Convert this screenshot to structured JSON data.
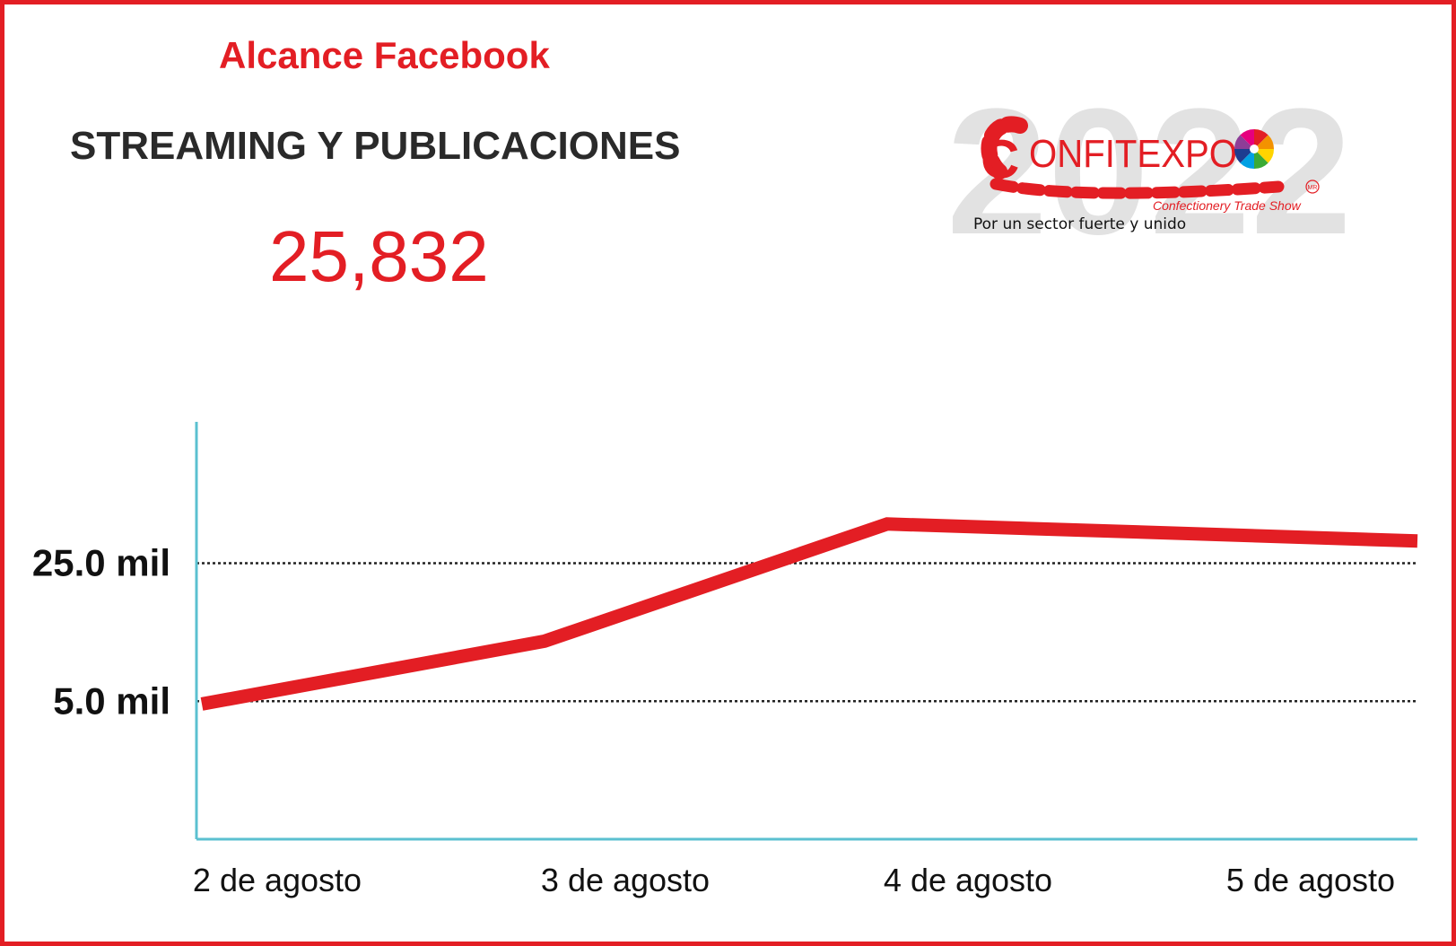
{
  "header": {
    "title": "Alcance Facebook",
    "subtitle": "STREAMING Y PUBLICACIONES",
    "total": "25,832"
  },
  "logo": {
    "year": "2022",
    "brand": "ONFITEXPO",
    "brand_initial": "C",
    "tagline": "Confectionery Trade Show",
    "slogan": "Por un sector fuerte y unido",
    "mark": "MR"
  },
  "colors": {
    "accent": "#e31e24",
    "axis": "#5bc0d0",
    "text": "#111111",
    "logo_year": "#e2e2e2"
  },
  "chart_data": {
    "type": "line",
    "title": "",
    "xlabel": "",
    "ylabel": "",
    "x": [
      "2 de agosto",
      "3 de agosto",
      "4 de agosto",
      "5 de agosto"
    ],
    "series": [
      {
        "values": [
          4600,
          13700,
          30700,
          29100
        ]
      }
    ],
    "ylim": [
      -15000,
      45500
    ],
    "yticks": [
      {
        "value": 25000,
        "label": "25.0 mil"
      },
      {
        "value": 5000,
        "label": "5.0 mil"
      }
    ],
    "grid": "dotted horizontal lines at tick values",
    "legend": "none"
  }
}
